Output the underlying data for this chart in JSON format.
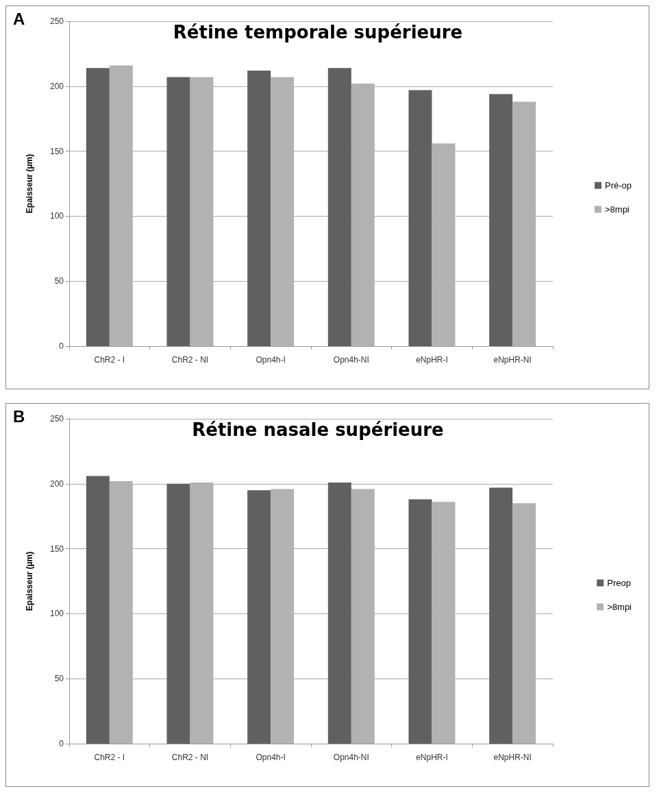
{
  "chart_data": [
    {
      "type": "bar",
      "title": "Rétine temporale supérieure",
      "ylabel": "Epaisseur (µm)",
      "annotations": [
        "A"
      ],
      "categories": [
        "ChR2 - I",
        "ChR2 - NI",
        "Opn4h-I",
        "Opn4h-NI",
        "eNpHR-I",
        "eNpHR-NI"
      ],
      "series": [
        {
          "name": "Pré-op",
          "color": "#606060",
          "values": [
            214,
            207,
            212,
            214,
            197,
            194
          ]
        },
        {
          "name": ">8mpi",
          "color": "#b2b2b2",
          "values": [
            216,
            207,
            207,
            202,
            156,
            188
          ]
        }
      ],
      "ylim": [
        0,
        250
      ],
      "yticks": [
        0,
        50,
        100,
        150,
        200,
        250
      ],
      "grid": "y",
      "legend": "right"
    },
    {
      "type": "bar",
      "title": "Rétine nasale supérieure",
      "ylabel": "Epaisseur (µm)",
      "annotations": [
        "B"
      ],
      "categories": [
        "ChR2 - I",
        "ChR2 - NI",
        "Opn4h-I",
        "Opn4h-NI",
        "eNpHR-I",
        "eNpHR-NI"
      ],
      "series": [
        {
          "name": "Preop",
          "color": "#606060",
          "values": [
            206,
            200,
            195,
            201,
            188,
            197
          ]
        },
        {
          "name": ">8mpi",
          "color": "#b2b2b2",
          "values": [
            202,
            201,
            196,
            196,
            186,
            185
          ]
        }
      ],
      "ylim": [
        0,
        250
      ],
      "yticks": [
        0,
        50,
        100,
        150,
        200,
        250
      ],
      "grid": "y",
      "legend": "right"
    }
  ]
}
